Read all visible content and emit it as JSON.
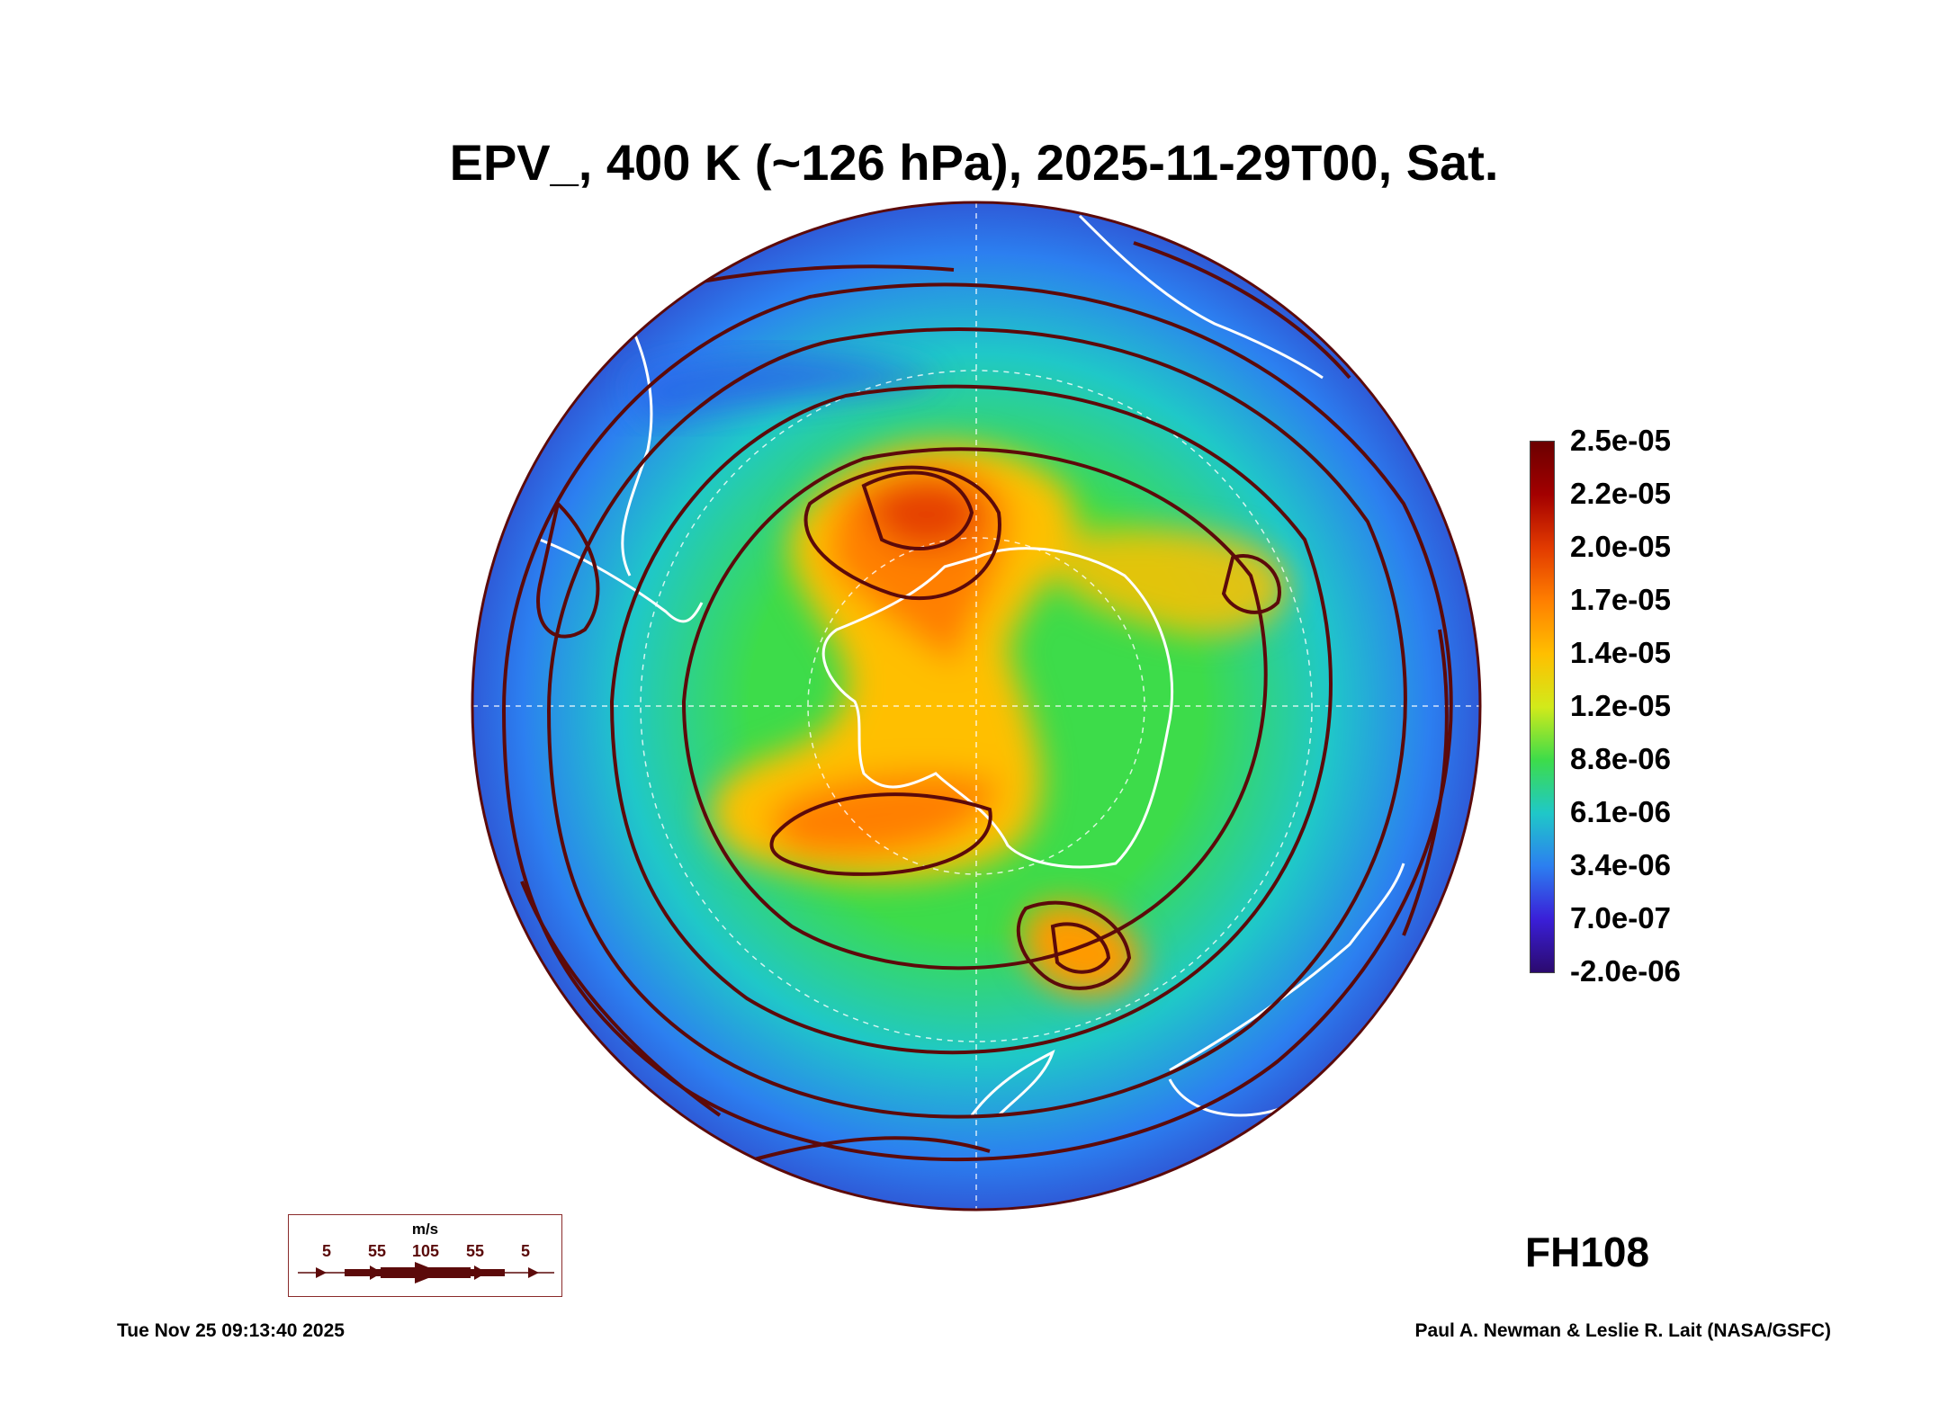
{
  "title": "EPV_, 400 K (~126 hPa), 2025-11-29T00, Sat.",
  "colorbar": {
    "labels": [
      "2.5e-05",
      "2.2e-05",
      "2.0e-05",
      "1.7e-05",
      "1.4e-05",
      "1.2e-05",
      "8.8e-06",
      "6.1e-06",
      "3.4e-06",
      "7.0e-07",
      "-2.0e-06"
    ],
    "colors": [
      "#6b0000",
      "#a30000",
      "#e23a00",
      "#ff7f00",
      "#ffbf00",
      "#d2ea1a",
      "#3ddc4a",
      "#1fc8c8",
      "#2c7ff0",
      "#3a1fd8",
      "#2b0a6e"
    ]
  },
  "forecast_hour": "FH108",
  "wind_legend": {
    "unit": "m/s",
    "ticks": [
      "5",
      "55",
      "105",
      "55",
      "5"
    ]
  },
  "footer": {
    "timestamp": "Tue Nov 25 09:13:40 2025",
    "credit": "Paul A. Newman & Leslie R. Lait (NASA/GSFC)"
  },
  "map": {
    "projection": "south polar orthographic",
    "field": "EPV",
    "overlay": "streamlines",
    "streamline_color": "#5c0a0a",
    "coastline_color": "#ffffff",
    "background_color": "#2c7ff0"
  }
}
